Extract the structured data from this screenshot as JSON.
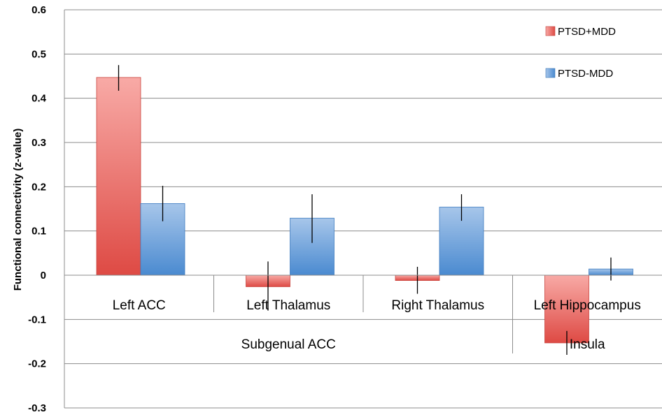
{
  "chart_data": {
    "type": "bar",
    "title": "",
    "ylabel": "Functional connectivity (z-value)",
    "xlabel": "",
    "ylim": [
      -0.3,
      0.6
    ],
    "yticks": [
      "0.6",
      "0.5",
      "0.4",
      "0.3",
      "0.2",
      "0.1",
      "0",
      "-0.1",
      "-0.2",
      "-0.3"
    ],
    "categories": [
      "Left ACC",
      "Left Thalamus",
      "Right Thalamus",
      "Left Hippocampus"
    ],
    "groups": [
      {
        "label": "Subgenual ACC",
        "categories": [
          "Left ACC",
          "Left Thalamus",
          "Right Thalamus"
        ]
      },
      {
        "label": "Insula",
        "categories": [
          "Left Hippocampus"
        ]
      }
    ],
    "series": [
      {
        "name": "PTSD+MDD",
        "color": "#e0504a",
        "values": [
          0.447,
          -0.026,
          -0.012,
          -0.153
        ],
        "err_low": [
          0.417,
          -0.08,
          -0.042,
          -0.18
        ],
        "err_high": [
          0.475,
          0.031,
          0.019,
          -0.126
        ]
      },
      {
        "name": "PTSD-MDD",
        "color": "#4f8fd2",
        "values": [
          0.162,
          0.129,
          0.154,
          0.014
        ],
        "err_low": [
          0.122,
          0.073,
          0.123,
          -0.012
        ],
        "err_high": [
          0.202,
          0.183,
          0.183,
          0.04
        ]
      }
    ],
    "legend": {
      "position": "top-right"
    },
    "grid": true
  }
}
